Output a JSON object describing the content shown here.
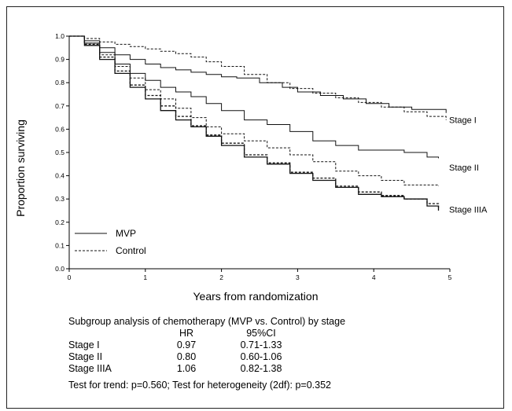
{
  "chart_data": {
    "type": "line",
    "xlabel": "Years from randomization",
    "ylabel": "Proportion surviving",
    "xlim": [
      0,
      5
    ],
    "ylim": [
      0,
      1
    ],
    "x_ticks": [
      "0",
      "1",
      "2",
      "3",
      "4",
      "5"
    ],
    "y_ticks": [
      "0.0",
      "0.1",
      "0.2",
      "0.3",
      "0.4",
      "0.5",
      "0.6",
      "0.7",
      "0.8",
      "0.9",
      "1.0"
    ],
    "grid": false,
    "legend": {
      "position": "bottom-left",
      "entries": [
        {
          "label": "MVP",
          "style": "solid"
        },
        {
          "label": "Control",
          "style": "dashed"
        }
      ]
    },
    "series": [
      {
        "group": "Stage I",
        "arm": "MVP",
        "style": "solid",
        "x": [
          0,
          0.2,
          0.4,
          0.6,
          0.8,
          1.0,
          1.2,
          1.4,
          1.6,
          1.8,
          2.0,
          2.2,
          2.5,
          2.8,
          3.0,
          3.3,
          3.6,
          3.9,
          4.2,
          4.5,
          4.95
        ],
        "y": [
          1.0,
          0.98,
          0.95,
          0.92,
          0.9,
          0.88,
          0.865,
          0.855,
          0.845,
          0.835,
          0.825,
          0.82,
          0.8,
          0.78,
          0.76,
          0.745,
          0.73,
          0.71,
          0.695,
          0.685,
          0.67
        ]
      },
      {
        "group": "Stage I",
        "arm": "Control",
        "style": "dashed",
        "x": [
          0,
          0.2,
          0.4,
          0.6,
          0.8,
          1.0,
          1.2,
          1.4,
          1.6,
          1.8,
          2.0,
          2.3,
          2.6,
          2.9,
          3.2,
          3.5,
          3.8,
          4.1,
          4.4,
          4.7,
          4.95
        ],
        "y": [
          1.0,
          0.99,
          0.975,
          0.965,
          0.955,
          0.945,
          0.935,
          0.925,
          0.91,
          0.89,
          0.87,
          0.835,
          0.8,
          0.775,
          0.755,
          0.735,
          0.715,
          0.695,
          0.675,
          0.655,
          0.64
        ]
      },
      {
        "group": "Stage II",
        "arm": "MVP",
        "style": "solid",
        "x": [
          0,
          0.2,
          0.4,
          0.6,
          0.8,
          1.0,
          1.2,
          1.4,
          1.6,
          1.8,
          2.0,
          2.3,
          2.6,
          2.9,
          3.2,
          3.5,
          3.8,
          4.1,
          4.4,
          4.7,
          4.85
        ],
        "y": [
          1.0,
          0.97,
          0.93,
          0.88,
          0.84,
          0.81,
          0.78,
          0.76,
          0.74,
          0.71,
          0.68,
          0.64,
          0.62,
          0.59,
          0.55,
          0.53,
          0.51,
          0.51,
          0.5,
          0.48,
          0.475
        ]
      },
      {
        "group": "Stage II",
        "arm": "Control",
        "style": "dashed",
        "x": [
          0,
          0.2,
          0.4,
          0.6,
          0.8,
          1.0,
          1.2,
          1.4,
          1.6,
          1.8,
          2.0,
          2.3,
          2.6,
          2.9,
          3.2,
          3.5,
          3.8,
          4.1,
          4.4,
          4.7,
          4.85
        ],
        "y": [
          1.0,
          0.97,
          0.92,
          0.87,
          0.82,
          0.77,
          0.73,
          0.69,
          0.65,
          0.61,
          0.58,
          0.55,
          0.52,
          0.49,
          0.46,
          0.42,
          0.4,
          0.38,
          0.36,
          0.36,
          0.355
        ]
      },
      {
        "group": "Stage IIIA",
        "arm": "MVP",
        "style": "solid",
        "x": [
          0,
          0.2,
          0.4,
          0.6,
          0.8,
          1.0,
          1.2,
          1.4,
          1.6,
          1.8,
          2.0,
          2.3,
          2.6,
          2.9,
          3.2,
          3.5,
          3.8,
          4.1,
          4.4,
          4.7,
          4.85
        ],
        "y": [
          1.0,
          0.96,
          0.9,
          0.84,
          0.78,
          0.73,
          0.68,
          0.64,
          0.61,
          0.57,
          0.53,
          0.48,
          0.45,
          0.41,
          0.38,
          0.35,
          0.32,
          0.31,
          0.3,
          0.27,
          0.25
        ]
      },
      {
        "group": "Stage IIIA",
        "arm": "Control",
        "style": "dashed",
        "x": [
          0,
          0.2,
          0.4,
          0.6,
          0.8,
          1.0,
          1.2,
          1.4,
          1.6,
          1.8,
          2.0,
          2.3,
          2.6,
          2.9,
          3.2,
          3.5,
          3.8,
          4.1,
          4.4,
          4.7,
          4.85
        ],
        "y": [
          1.0,
          0.965,
          0.91,
          0.85,
          0.79,
          0.745,
          0.7,
          0.655,
          0.615,
          0.575,
          0.54,
          0.49,
          0.455,
          0.415,
          0.39,
          0.355,
          0.33,
          0.315,
          0.3,
          0.28,
          0.26
        ]
      }
    ],
    "group_labels": [
      "Stage I",
      "Stage II",
      "Stage IIIA"
    ],
    "group_label_y": [
      0.64,
      0.435,
      0.255
    ],
    "table": {
      "title": "Subgroup analysis of chemotherapy (MVP vs. Control) by stage",
      "headers": [
        "",
        "HR",
        "95%CI"
      ],
      "rows": [
        [
          "Stage I",
          "0.97",
          "0.71-1.33"
        ],
        [
          "Stage II",
          "0.80",
          "0.60-1.06"
        ],
        [
          "Stage IIIA",
          "1.06",
          "0.82-1.38"
        ]
      ],
      "footer": "Test for trend: p=0.560;  Test for heterogeneity (2df): p=0.352"
    }
  }
}
